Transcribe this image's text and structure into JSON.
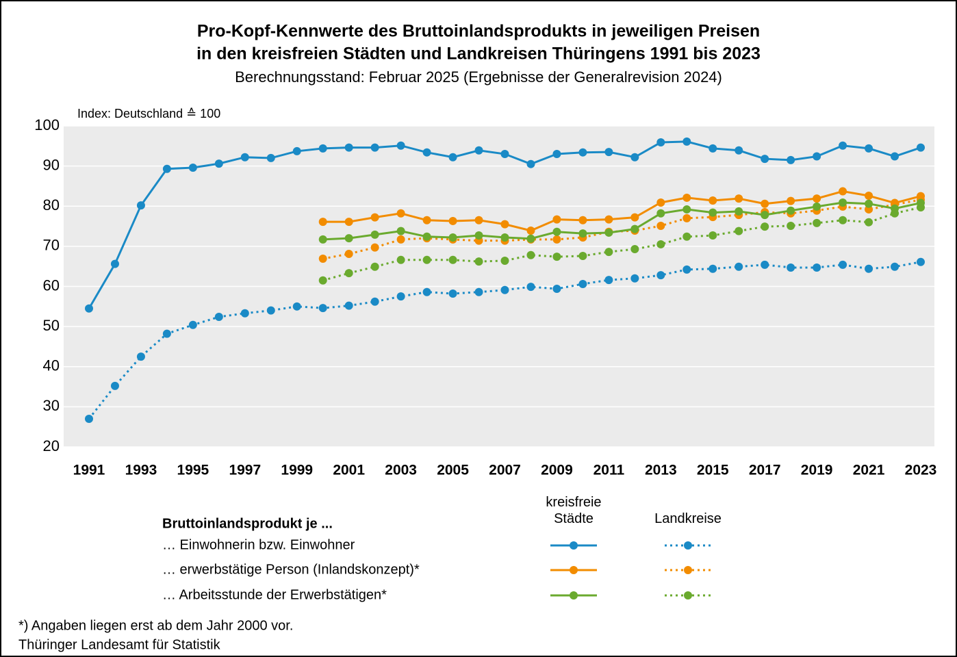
{
  "chart_data": {
    "type": "line",
    "title": [
      "Pro-Kopf-Kennwerte des Bruttoinlandsprodukts in jeweiligen Preisen",
      "in den kreisfreien Städten und Landkreisen Thüringens 1991 bis 2023"
    ],
    "subtitle": "Berechnungsstand: Februar 2025 (Ergebnisse der Generalrevision 2024)",
    "y_label": "Index: Deutschland ≙ 100",
    "x": [
      1991,
      1992,
      1993,
      1994,
      1995,
      1996,
      1997,
      1998,
      1999,
      2000,
      2001,
      2002,
      2003,
      2004,
      2005,
      2006,
      2007,
      2008,
      2009,
      2010,
      2011,
      2012,
      2013,
      2014,
      2015,
      2016,
      2017,
      2018,
      2019,
      2020,
      2021,
      2022,
      2023
    ],
    "xlim": [
      1991,
      2023
    ],
    "xticks": [
      1991,
      1993,
      1995,
      1997,
      1999,
      2001,
      2003,
      2005,
      2007,
      2009,
      2011,
      2013,
      2015,
      2017,
      2019,
      2021,
      2023
    ],
    "ylim": [
      20,
      100
    ],
    "yticks": [
      20,
      30,
      40,
      50,
      60,
      70,
      80,
      90,
      100
    ],
    "grid": true,
    "series": [
      {
        "color": "#1a8ac6",
        "dash": "solid",
        "values": [
          54.5,
          65.6,
          80.2,
          89.3,
          89.6,
          90.6,
          92.2,
          92.0,
          93.7,
          94.4,
          94.6,
          94.6,
          95.1,
          93.4,
          92.2,
          93.9,
          93.0,
          90.5,
          93.0,
          93.4,
          93.5,
          92.2,
          95.9,
          96.1,
          94.4,
          93.9,
          91.8,
          91.5,
          92.4,
          95.1,
          94.4,
          92.4,
          94.6
        ]
      },
      {
        "color": "#1a8ac6",
        "dash": "dotted",
        "values": [
          27.0,
          35.2,
          42.5,
          48.2,
          50.4,
          52.4,
          53.3,
          54.0,
          55.0,
          54.6,
          55.2,
          56.2,
          57.5,
          58.6,
          58.2,
          58.6,
          59.1,
          59.9,
          59.4,
          60.6,
          61.6,
          62.0,
          62.8,
          64.2,
          64.4,
          64.9,
          65.4,
          64.7,
          64.7,
          65.4,
          64.4,
          64.9,
          66.1
        ]
      },
      {
        "color": "#f28c00",
        "dash": "solid",
        "values": [
          null,
          null,
          null,
          null,
          null,
          null,
          null,
          null,
          null,
          76.1,
          76.1,
          77.2,
          78.2,
          76.5,
          76.3,
          76.5,
          75.5,
          73.9,
          76.7,
          76.5,
          76.7,
          77.2,
          80.9,
          82.1,
          81.4,
          81.9,
          80.6,
          81.3,
          81.9,
          83.7,
          82.6,
          80.8,
          82.5
        ]
      },
      {
        "color": "#f28c00",
        "dash": "dotted",
        "values": [
          null,
          null,
          null,
          null,
          null,
          null,
          null,
          null,
          null,
          66.9,
          68.1,
          69.7,
          71.7,
          72.0,
          71.7,
          71.4,
          71.4,
          71.7,
          71.7,
          72.2,
          73.6,
          73.9,
          75.1,
          77.0,
          77.3,
          77.8,
          78.5,
          78.2,
          78.9,
          79.9,
          79.2,
          80.4,
          81.6
        ]
      },
      {
        "color": "#6aaa2e",
        "dash": "solid",
        "values": [
          null,
          null,
          null,
          null,
          null,
          null,
          null,
          null,
          null,
          71.7,
          72.0,
          72.9,
          73.8,
          72.4,
          72.2,
          72.7,
          72.2,
          71.9,
          73.6,
          73.2,
          73.4,
          74.3,
          78.2,
          79.2,
          78.4,
          78.7,
          77.8,
          78.9,
          79.9,
          80.9,
          80.6,
          79.4,
          80.8
        ]
      },
      {
        "color": "#6aaa2e",
        "dash": "dotted",
        "values": [
          null,
          null,
          null,
          null,
          null,
          null,
          null,
          null,
          null,
          61.5,
          63.3,
          64.9,
          66.6,
          66.6,
          66.6,
          66.2,
          66.4,
          67.8,
          67.4,
          67.6,
          68.6,
          69.3,
          70.5,
          72.4,
          72.7,
          73.8,
          74.9,
          75.1,
          75.8,
          76.5,
          76.0,
          78.2,
          79.7
        ]
      }
    ],
    "legend": {
      "title": "Bruttoinlandsprodukt je ...",
      "columns": [
        "kreisfreie Städte",
        "Landkreise"
      ],
      "rows": [
        "… Einwohnerin bzw. Einwohner",
        "… erwerbstätige Person (Inlandskonzept)*",
        "… Arbeitsstunde der Erwerbstätigen*"
      ]
    },
    "footnote": "*) Angaben liegen erst ab dem Jahr 2000 vor.",
    "source": "Thüringer Landesamt für Statistik"
  }
}
